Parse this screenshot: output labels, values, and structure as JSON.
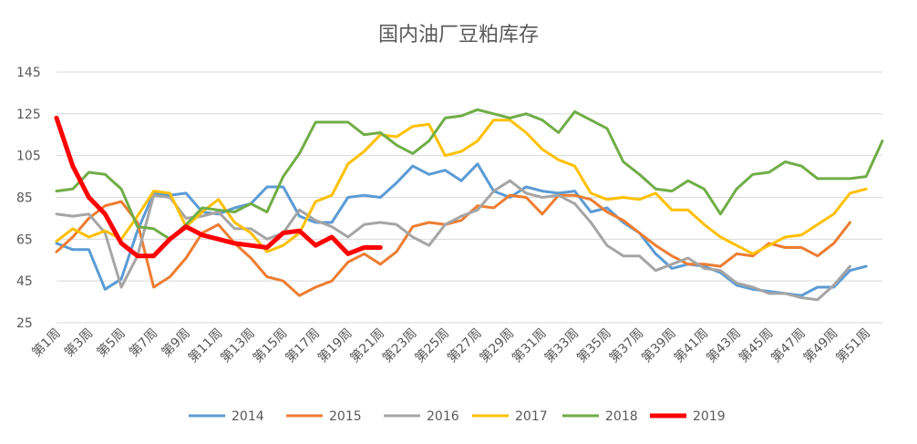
{
  "chart_data": {
    "type": "line",
    "title": "国内油厂豆粕库存",
    "xlabel": "",
    "ylabel": "",
    "ylim": [
      25,
      145
    ],
    "yticks": [
      25,
      45,
      65,
      85,
      105,
      125,
      145
    ],
    "grid": true,
    "legend_position": "bottom",
    "categories": [
      "第1周",
      "第2周",
      "第3周",
      "第4周",
      "第5周",
      "第6周",
      "第7周",
      "第8周",
      "第9周",
      "第10周",
      "第11周",
      "第12周",
      "第13周",
      "第14周",
      "第15周",
      "第16周",
      "第17周",
      "第18周",
      "第19周",
      "第20周",
      "第21周",
      "第22周",
      "第23周",
      "第24周",
      "第25周",
      "第26周",
      "第27周",
      "第28周",
      "第29周",
      "第30周",
      "第31周",
      "第32周",
      "第33周",
      "第34周",
      "第35周",
      "第36周",
      "第37周",
      "第38周",
      "第39周",
      "第40周",
      "第41周",
      "第42周",
      "第43周",
      "第44周",
      "第45周",
      "第46周",
      "第47周",
      "第48周",
      "第49周",
      "第50周",
      "第51周",
      "第52周"
    ],
    "tick_labels": [
      "第1周",
      "第3周",
      "第5周",
      "第7周",
      "第9周",
      "第11周",
      "第13周",
      "第15周",
      "第17周",
      "第19周",
      "第21周",
      "第23周",
      "第25周",
      "第27周",
      "第29周",
      "第31周",
      "第33周",
      "第35周",
      "第37周",
      "第39周",
      "第41周",
      "第43周",
      "第45周",
      "第47周",
      "第49周",
      "第51周"
    ],
    "series": [
      {
        "name": "2014",
        "color": "#5b9bd5",
        "width": 3,
        "values": [
          63,
          60,
          60,
          41,
          46,
          69,
          87,
          86,
          87,
          78,
          77,
          80,
          82,
          90,
          90,
          76,
          73,
          73,
          85,
          86,
          85,
          92,
          100,
          96,
          98,
          93,
          101,
          88,
          85,
          90,
          88,
          87,
          88,
          78,
          80,
          73,
          68,
          58,
          51,
          53,
          52,
          49,
          43,
          41,
          40,
          39,
          38,
          42,
          42,
          50,
          52,
          null
        ]
      },
      {
        "name": "2015",
        "color": "#ed7d31",
        "width": 3,
        "values": [
          59,
          66,
          75,
          81,
          83,
          73,
          42,
          47,
          56,
          68,
          72,
          63,
          56,
          47,
          45,
          38,
          42,
          45,
          54,
          58,
          53,
          59,
          71,
          73,
          72,
          74,
          81,
          80,
          86,
          85,
          77,
          86,
          86,
          84,
          78,
          74,
          68,
          62,
          57,
          53,
          53,
          52,
          58,
          57,
          63,
          61,
          61,
          57,
          63,
          73,
          null,
          null
        ]
      },
      {
        "name": "2016",
        "color": "#a5a5a5",
        "width": 3,
        "values": [
          77,
          76,
          77,
          68,
          42,
          57,
          86,
          85,
          75,
          76,
          78,
          70,
          70,
          65,
          68,
          79,
          74,
          71,
          66,
          72,
          73,
          72,
          66,
          62,
          72,
          76,
          79,
          88,
          93,
          87,
          85,
          86,
          82,
          73,
          62,
          57,
          57,
          50,
          53,
          56,
          51,
          50,
          44,
          42,
          39,
          39,
          37,
          36,
          43,
          52,
          null,
          null
        ]
      },
      {
        "name": "2017",
        "color": "#ffc000",
        "width": 3,
        "values": [
          64,
          70,
          66,
          69,
          65,
          76,
          88,
          87,
          71,
          78,
          84,
          73,
          68,
          59,
          62,
          68,
          83,
          86,
          101,
          107,
          115,
          114,
          119,
          120,
          105,
          107,
          112,
          122,
          122,
          116,
          108,
          103,
          100,
          87,
          84,
          85,
          84,
          87,
          79,
          79,
          72,
          66,
          62,
          58,
          62,
          66,
          67,
          72,
          77,
          87,
          89,
          null
        ]
      },
      {
        "name": "2018",
        "color": "#70ad47",
        "width": 3,
        "values": [
          88,
          89,
          97,
          96,
          89,
          71,
          70,
          65,
          72,
          80,
          79,
          78,
          82,
          78,
          95,
          106,
          121,
          121,
          121,
          115,
          116,
          110,
          106,
          112,
          123,
          124,
          127,
          125,
          123,
          125,
          122,
          116,
          126,
          122,
          118,
          102,
          96,
          89,
          88,
          93,
          89,
          77,
          89,
          96,
          97,
          102,
          100,
          94,
          94,
          94,
          95,
          112
        ]
      },
      {
        "name": "2019",
        "color": "#ff0000",
        "width": 5,
        "values": [
          123,
          100,
          85,
          77,
          63,
          57,
          57,
          65,
          71,
          67,
          65,
          63,
          62,
          61,
          68,
          69,
          62,
          66,
          58,
          61,
          61,
          null,
          null,
          null,
          null,
          null,
          null,
          null,
          null,
          null,
          null,
          null,
          null,
          null,
          null,
          null,
          null,
          null,
          null,
          null,
          null,
          null,
          null,
          null,
          null,
          null,
          null,
          null,
          null,
          null,
          null,
          null
        ]
      }
    ]
  }
}
